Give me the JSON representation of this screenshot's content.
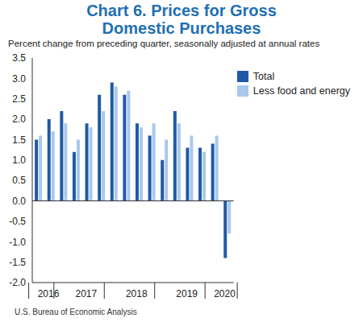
{
  "chart_data": {
    "type": "bar",
    "title": "Chart 6. Prices for Gross Domestic Purchases",
    "subtitle": "Percent change from preceding quarter, seasonally adjusted at annual rates",
    "source": "U.S. Bureau of Economic Analysis",
    "categories": [
      "2016",
      null,
      null,
      "2017",
      null,
      null,
      null,
      "2018",
      null,
      null,
      null,
      "2019",
      null,
      null,
      "2020",
      null
    ],
    "series": [
      {
        "name": "Total",
        "color": "#1f5aa6",
        "values": [
          1.5,
          2.0,
          2.2,
          1.2,
          1.9,
          2.6,
          2.9,
          2.6,
          1.9,
          1.6,
          1.0,
          2.2,
          1.3,
          1.3,
          1.4,
          -1.4
        ]
      },
      {
        "name": "Less food and energy",
        "color": "#a9c8ec",
        "values": [
          1.6,
          1.7,
          1.9,
          1.5,
          1.8,
          2.2,
          2.8,
          2.7,
          1.8,
          1.9,
          1.5,
          1.9,
          1.6,
          1.2,
          1.6,
          -0.8
        ]
      }
    ],
    "ylim": [
      -2,
      3.5
    ],
    "yticks": [
      {
        "value": -2,
        "label": "-2.0"
      },
      -1.5,
      {
        "value": -1,
        "label": "-1.0"
      },
      -0.5,
      {
        "value": 0,
        "label": "0.0"
      },
      0.5,
      {
        "value": 1,
        "label": "1.0"
      },
      1.5,
      {
        "value": 2,
        "label": "2.0"
      },
      2.5,
      {
        "value": 3,
        "label": "3.0"
      },
      3.5
    ],
    "grid": false,
    "legend": "upper right"
  }
}
